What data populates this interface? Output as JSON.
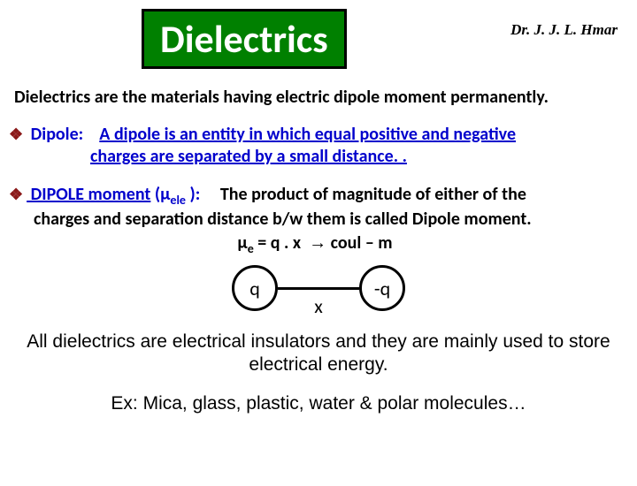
{
  "author": "Dr. J. J. L. Hmar",
  "title": "Dielectrics",
  "intro": "Dielectrics are the materials having electric dipole moment permanently.",
  "bullet1": {
    "term": "Dipole:",
    "line1": "A dipole is an entity in which equal positive and negative",
    "line2": "charges are separated by a small distance. ."
  },
  "bullet2": {
    "term_prefix": " DIPOLE moment",
    "term_paren_open": " (",
    "mu": "μ",
    "sub": "ele",
    "term_paren_close": " ):",
    "line1": "The product of magnitude of either of the",
    "line2": "charges and separation distance b/w them is called Dipole moment.",
    "formula": "μe = q . x  → coul – m"
  },
  "diagram": {
    "left": "q",
    "x": "x",
    "right": "-q"
  },
  "closing1": "All dielectrics are electrical insulators and they are mainly used to store electrical energy.",
  "closing2": "Ex: Mica, glass, plastic, water & polar molecules…",
  "colors": {
    "title_bg": "#008000",
    "title_border": "#000000",
    "title_text": "#ffffff",
    "diamond": "#8b1a1a",
    "term": "#0000cc",
    "body": "#000000"
  }
}
